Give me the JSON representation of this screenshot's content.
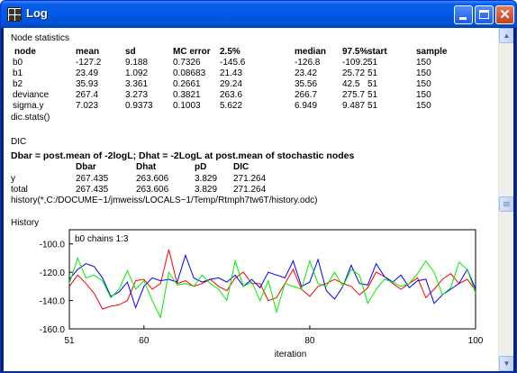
{
  "window": {
    "title": "Log"
  },
  "node_statistics": {
    "heading": "Node statistics",
    "columns": [
      "node",
      "mean",
      "sd",
      "MC error",
      "2.5%",
      "median",
      "97.5%",
      "start",
      "sample"
    ],
    "rows": [
      [
        "b0",
        "-127.2",
        "9.188",
        "0.7326",
        "-145.6",
        "-126.8",
        "-109.2",
        "51",
        "150"
      ],
      [
        "b1",
        "23.49",
        "1.092",
        "0.08683",
        "21.43",
        "23.42",
        "25.72",
        "51",
        "150"
      ],
      [
        "b2",
        "35.93",
        "3.361",
        "0.2661",
        "29.24",
        "35.56",
        "42.5",
        "51",
        "150"
      ],
      [
        "deviance",
        "267.4",
        "3.273",
        "0.3821",
        "263.6",
        "266.7",
        "275.7",
        "51",
        "150"
      ],
      [
        "sigma.y",
        "7.023",
        "0.9373",
        "0.1003",
        "5.622",
        "6.949",
        "9.487",
        "51",
        "150"
      ]
    ],
    "command": "dic.stats()"
  },
  "dic": {
    "heading": "DIC",
    "definition": "Dbar = post.mean of -2logL; Dhat = -2LogL at post.mean of stochastic nodes",
    "columns": [
      "Dbar",
      "Dhat",
      "pD",
      "DIC"
    ],
    "rows": [
      [
        "y",
        "267.435",
        "263.606",
        "3.829",
        "271.264"
      ],
      [
        "total",
        "267.435",
        "263.606",
        "3.829",
        "271.264"
      ]
    ],
    "command": "history(*,C:/DOCUME~1/jmweiss/LOCALS~1/Temp/Rtmph7tw6T/history.odc)"
  },
  "history": {
    "heading": "History"
  },
  "chart_data": {
    "type": "line",
    "title": "b0 chains 1:3",
    "xlabel": "iteration",
    "ylabel": "",
    "xlim": [
      51,
      100
    ],
    "ylim": [
      -160,
      -90
    ],
    "xticks": [
      51,
      60,
      80,
      100
    ],
    "yticks": [
      -100,
      -120,
      -140,
      -160
    ],
    "ytick_labels": [
      "-100.0",
      "-120.0",
      "-140.0",
      "-160.0"
    ],
    "grid": false,
    "legend": "none",
    "series": [
      {
        "color": "#ff0000",
        "x": [
          51,
          52,
          53,
          54,
          55,
          56,
          57,
          58,
          59,
          60,
          61,
          62,
          63,
          64,
          65,
          66,
          67,
          68,
          69,
          70,
          71,
          72,
          73,
          74,
          75,
          76,
          77,
          78,
          79,
          80,
          81,
          82,
          83,
          84,
          85,
          86,
          87,
          88,
          89,
          90,
          91,
          92,
          93,
          94,
          95,
          96,
          97,
          98,
          99,
          100
        ],
        "y": [
          -130,
          -122,
          -128,
          -135,
          -146,
          -144,
          -143,
          -140,
          -126,
          -125,
          -132,
          -128,
          -104,
          -128,
          -126,
          -130,
          -128,
          -125,
          -130,
          -133,
          -124,
          -120,
          -128,
          -128,
          -140,
          -138,
          -128,
          -118,
          -132,
          -137,
          -130,
          -128,
          -125,
          -128,
          -130,
          -136,
          -131,
          -120,
          -123,
          -128,
          -132,
          -128,
          -124,
          -138,
          -132,
          -125,
          -121,
          -128,
          -125,
          -133
        ]
      },
      {
        "color": "#0000ff",
        "x": [
          51,
          52,
          53,
          54,
          55,
          56,
          57,
          58,
          59,
          60,
          61,
          62,
          63,
          64,
          65,
          66,
          67,
          68,
          69,
          70,
          71,
          72,
          73,
          74,
          75,
          76,
          77,
          78,
          79,
          80,
          81,
          82,
          83,
          84,
          85,
          86,
          87,
          88,
          89,
          90,
          91,
          92,
          93,
          94,
          95,
          96,
          97,
          98,
          99,
          100
        ],
        "y": [
          -125,
          -118,
          -114,
          -116,
          -124,
          -137,
          -134,
          -127,
          -145,
          -130,
          -124,
          -126,
          -125,
          -127,
          -108,
          -124,
          -127,
          -125,
          -124,
          -127,
          -122,
          -130,
          -125,
          -131,
          -120,
          -122,
          -124,
          -112,
          -130,
          -127,
          -111,
          -133,
          -139,
          -130,
          -115,
          -128,
          -129,
          -114,
          -123,
          -127,
          -122,
          -131,
          -126,
          -125,
          -142,
          -136,
          -132,
          -128,
          -118,
          -132
        ]
      },
      {
        "color": "#00ee00",
        "x": [
          51,
          52,
          53,
          54,
          55,
          56,
          57,
          58,
          59,
          60,
          61,
          62,
          63,
          64,
          65,
          66,
          67,
          68,
          69,
          70,
          71,
          72,
          73,
          74,
          75,
          76,
          77,
          78,
          79,
          80,
          81,
          82,
          83,
          84,
          85,
          86,
          87,
          88,
          89,
          90,
          91,
          92,
          93,
          94,
          95,
          96,
          97,
          98,
          99,
          100
        ],
        "y": [
          -128,
          -110,
          -124,
          -122,
          -126,
          -138,
          -132,
          -119,
          -132,
          -126,
          -140,
          -152,
          -120,
          -129,
          -128,
          -130,
          -122,
          -128,
          -132,
          -140,
          -112,
          -130,
          -127,
          -140,
          -126,
          -148,
          -128,
          -130,
          -132,
          -112,
          -128,
          -130,
          -120,
          -130,
          -118,
          -122,
          -142,
          -132,
          -125,
          -127,
          -130,
          -128,
          -121,
          -112,
          -120,
          -136,
          -131,
          -113,
          -118,
          -135
        ]
      }
    ]
  }
}
